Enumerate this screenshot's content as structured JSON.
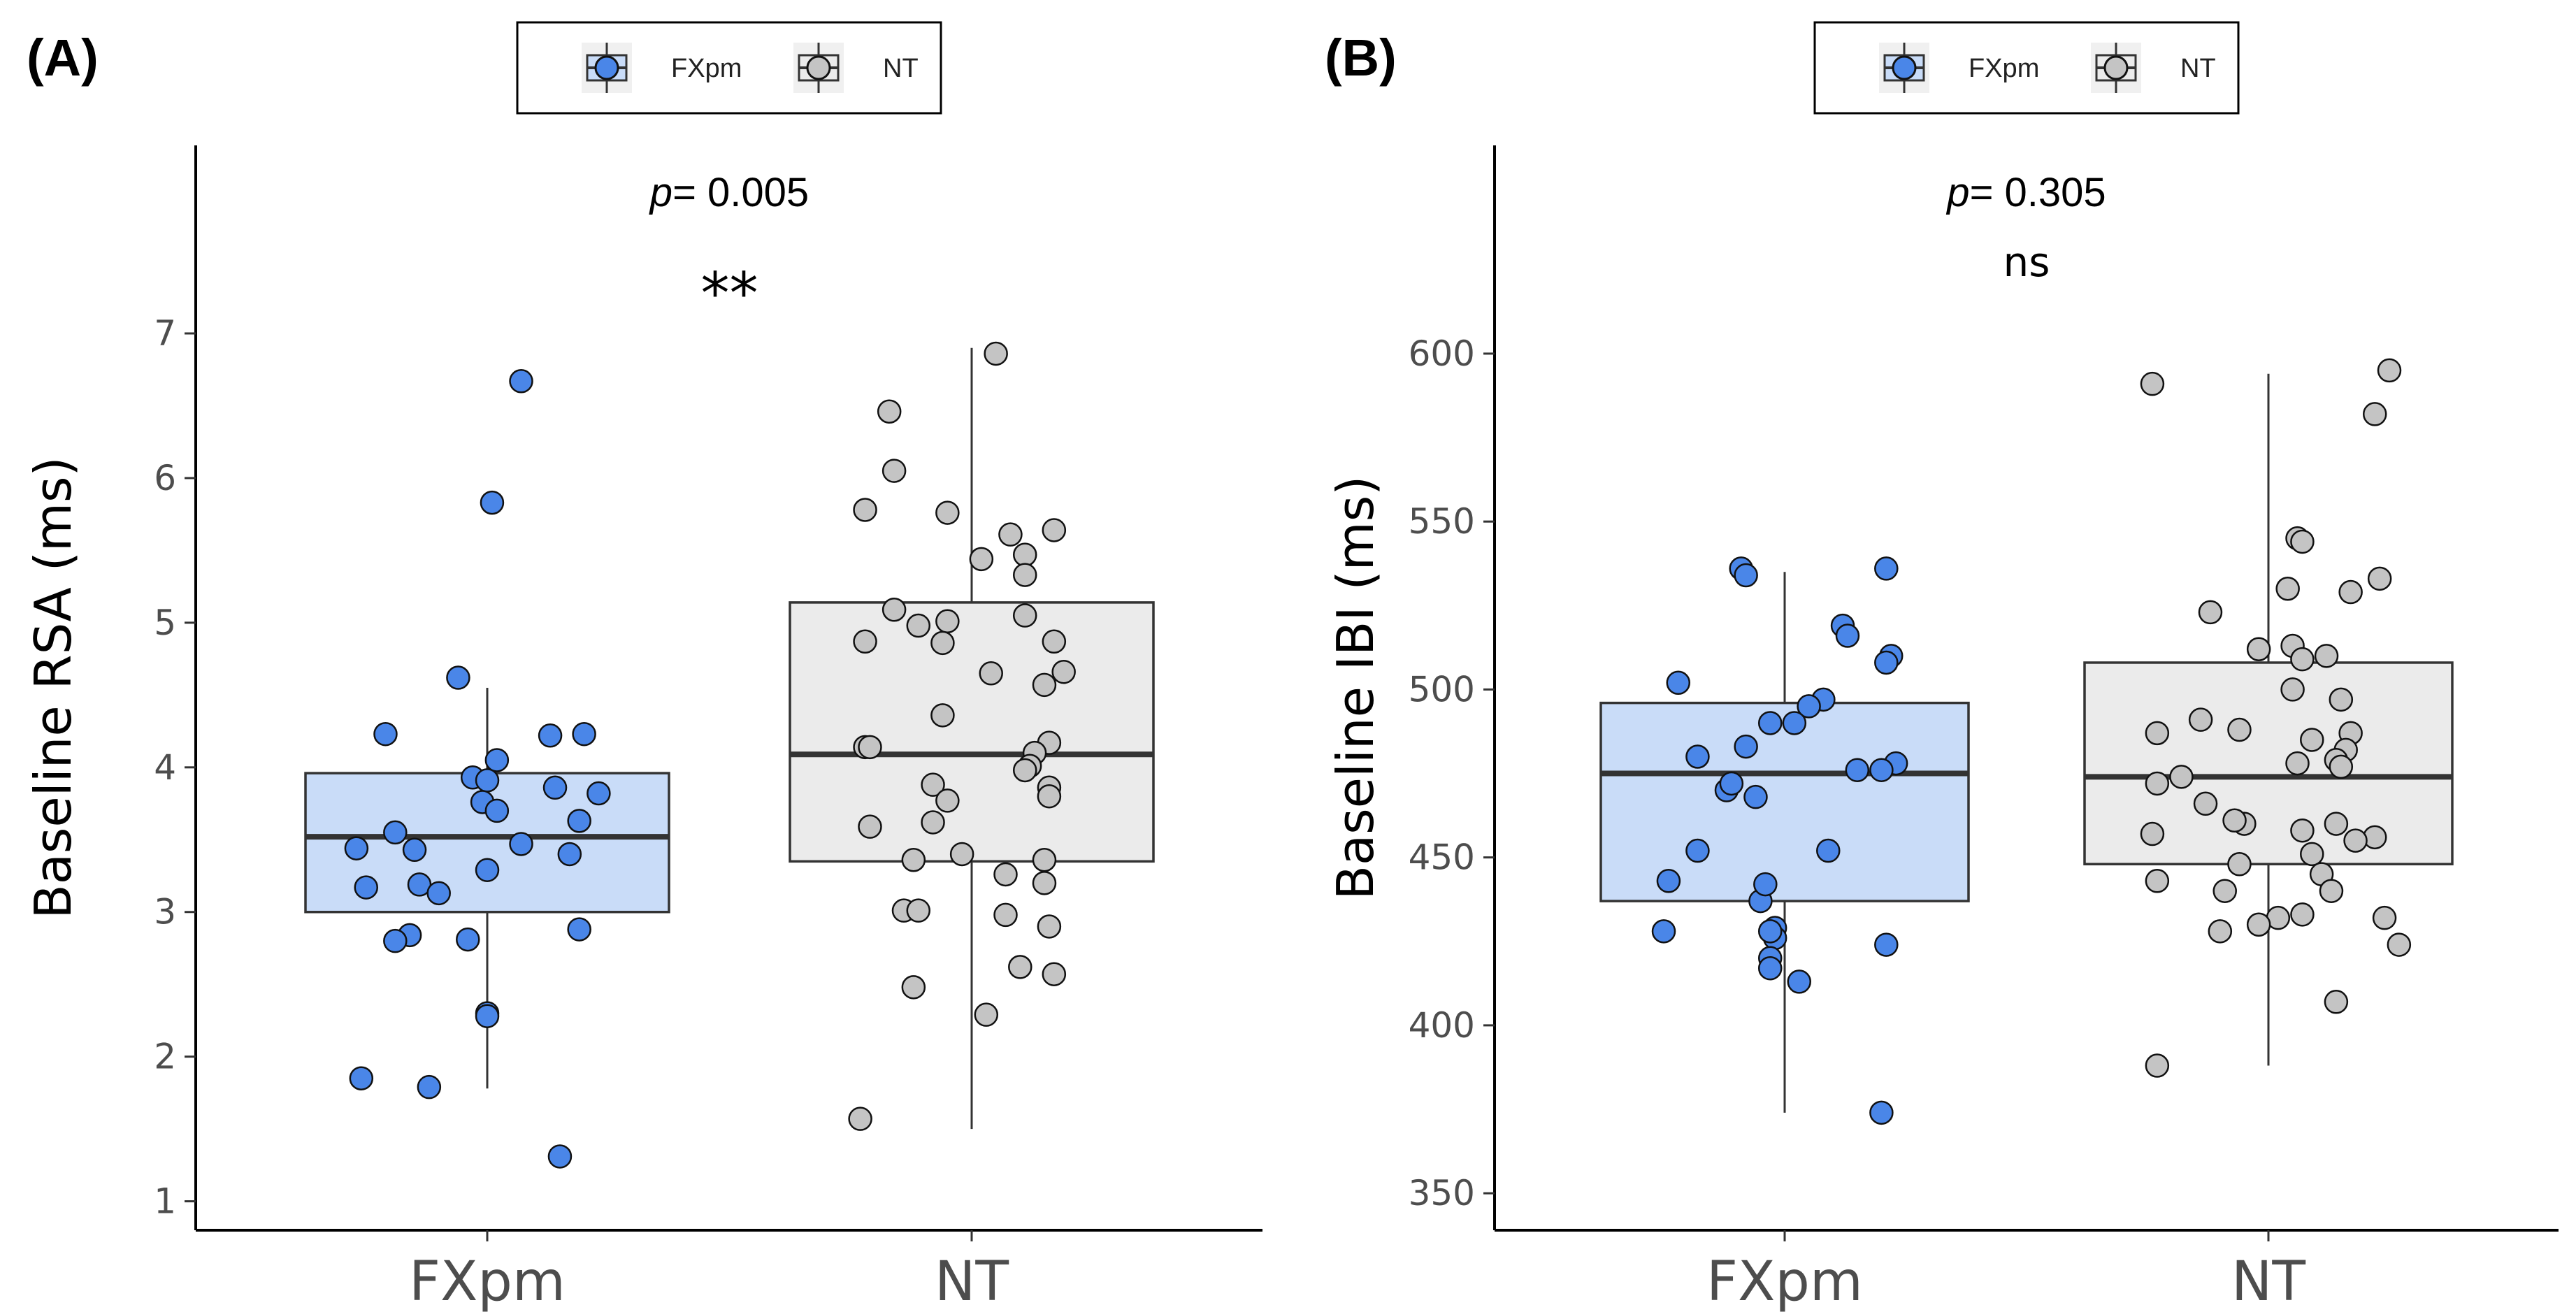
{
  "chart_data": [
    {
      "panel_label": "(A)",
      "type": "box",
      "ylabel": "Baseline RSA (ms)",
      "categories": [
        "FXpm",
        "NT"
      ],
      "ylim": [
        0.8,
        8.3
      ],
      "yticks": [
        "1",
        "2",
        "3",
        "4",
        "5",
        "6",
        "7"
      ],
      "ytick_values": [
        1,
        2,
        3,
        4,
        5,
        6,
        7
      ],
      "legend": [
        {
          "label": "FXpm",
          "color": "#4a86e8"
        },
        {
          "label": "NT",
          "color": "#c4c4c4"
        }
      ],
      "p_prefix": "p",
      "p_value": "= 0.005",
      "significance": "**",
      "boxes": [
        {
          "name": "FXpm",
          "whisker_low": 1.78,
          "q1": 3.0,
          "median": 3.52,
          "q3": 3.96,
          "whisker_high": 4.55,
          "fill": "#c9dcf8",
          "point_color": "#4a86e8"
        },
        {
          "name": "NT",
          "whisker_low": 1.5,
          "q1": 3.35,
          "median": 4.09,
          "q3": 5.14,
          "whisker_high": 6.9,
          "fill": "#ebebeb",
          "point_color": "#c4c4c4"
        }
      ],
      "points": [
        [
          {
            "x": 0.07,
            "y": 6.67
          },
          {
            "x": 0.01,
            "y": 5.83
          },
          {
            "x": -0.06,
            "y": 4.62
          },
          {
            "x": -0.21,
            "y": 4.23
          },
          {
            "x": 0.13,
            "y": 4.22
          },
          {
            "x": 0.2,
            "y": 4.23
          },
          {
            "x": 0.02,
            "y": 4.05
          },
          {
            "x": -0.03,
            "y": 3.93
          },
          {
            "x": 0.0,
            "y": 3.91
          },
          {
            "x": 0.14,
            "y": 3.86
          },
          {
            "x": 0.23,
            "y": 3.82
          },
          {
            "x": -0.01,
            "y": 3.76
          },
          {
            "x": 0.02,
            "y": 3.7
          },
          {
            "x": 0.19,
            "y": 3.63
          },
          {
            "x": -0.19,
            "y": 3.55
          },
          {
            "x": 0.07,
            "y": 3.47
          },
          {
            "x": -0.27,
            "y": 3.44
          },
          {
            "x": -0.15,
            "y": 3.43
          },
          {
            "x": 0.17,
            "y": 3.4
          },
          {
            "x": 0.0,
            "y": 3.29
          },
          {
            "x": -0.14,
            "y": 3.19
          },
          {
            "x": -0.25,
            "y": 3.17
          },
          {
            "x": -0.1,
            "y": 3.13
          },
          {
            "x": 0.19,
            "y": 2.88
          },
          {
            "x": -0.16,
            "y": 2.84
          },
          {
            "x": -0.19,
            "y": 2.8
          },
          {
            "x": -0.04,
            "y": 2.81
          },
          {
            "x": 0.0,
            "y": 2.3
          },
          {
            "x": 0.0,
            "y": 2.28
          },
          {
            "x": -0.26,
            "y": 1.85
          },
          {
            "x": -0.12,
            "y": 1.79
          },
          {
            "x": 0.15,
            "y": 1.31
          }
        ],
        [
          {
            "x": 0.05,
            "y": 6.86
          },
          {
            "x": -0.17,
            "y": 6.46
          },
          {
            "x": -0.16,
            "y": 6.05
          },
          {
            "x": -0.22,
            "y": 5.78
          },
          {
            "x": -0.05,
            "y": 5.76
          },
          {
            "x": 0.08,
            "y": 5.61
          },
          {
            "x": 0.17,
            "y": 5.64
          },
          {
            "x": 0.11,
            "y": 5.47
          },
          {
            "x": 0.02,
            "y": 5.44
          },
          {
            "x": 0.11,
            "y": 5.33
          },
          {
            "x": -0.16,
            "y": 5.09
          },
          {
            "x": 0.11,
            "y": 5.05
          },
          {
            "x": -0.05,
            "y": 5.01
          },
          {
            "x": -0.11,
            "y": 4.98
          },
          {
            "x": -0.22,
            "y": 4.87
          },
          {
            "x": -0.06,
            "y": 4.86
          },
          {
            "x": 0.17,
            "y": 4.87
          },
          {
            "x": 0.19,
            "y": 4.66
          },
          {
            "x": 0.04,
            "y": 4.65
          },
          {
            "x": 0.15,
            "y": 4.57
          },
          {
            "x": -0.06,
            "y": 4.36
          },
          {
            "x": 0.16,
            "y": 4.17
          },
          {
            "x": -0.22,
            "y": 4.14
          },
          {
            "x": -0.21,
            "y": 4.14
          },
          {
            "x": 0.13,
            "y": 4.1
          },
          {
            "x": 0.12,
            "y": 4.01
          },
          {
            "x": 0.11,
            "y": 3.98
          },
          {
            "x": -0.08,
            "y": 3.88
          },
          {
            "x": 0.16,
            "y": 3.86
          },
          {
            "x": 0.16,
            "y": 3.8
          },
          {
            "x": -0.05,
            "y": 3.77
          },
          {
            "x": -0.08,
            "y": 3.62
          },
          {
            "x": -0.21,
            "y": 3.59
          },
          {
            "x": -0.02,
            "y": 3.4
          },
          {
            "x": -0.12,
            "y": 3.36
          },
          {
            "x": 0.15,
            "y": 3.36
          },
          {
            "x": 0.07,
            "y": 3.26
          },
          {
            "x": 0.15,
            "y": 3.2
          },
          {
            "x": -0.14,
            "y": 3.01
          },
          {
            "x": -0.11,
            "y": 3.01
          },
          {
            "x": 0.07,
            "y": 2.98
          },
          {
            "x": 0.16,
            "y": 2.9
          },
          {
            "x": 0.1,
            "y": 2.62
          },
          {
            "x": 0.17,
            "y": 2.57
          },
          {
            "x": -0.12,
            "y": 2.48
          },
          {
            "x": 0.03,
            "y": 2.29
          },
          {
            "x": -0.23,
            "y": 1.57
          }
        ]
      ]
    },
    {
      "panel_label": "(B)",
      "type": "box",
      "ylabel": "Baseline IBI (ms)",
      "categories": [
        "FXpm",
        "NT"
      ],
      "ylim": [
        339,
        662
      ],
      "yticks": [
        "350",
        "400",
        "450",
        "500",
        "550",
        "600"
      ],
      "ytick_values": [
        350,
        400,
        450,
        500,
        550,
        600
      ],
      "legend": [
        {
          "label": "FXpm",
          "color": "#4a86e8"
        },
        {
          "label": "NT",
          "color": "#c4c4c4"
        }
      ],
      "p_prefix": "p",
      "p_value": "= 0.305",
      "significance": "ns",
      "boxes": [
        {
          "name": "FXpm",
          "whisker_low": 374,
          "q1": 437,
          "median": 475,
          "q3": 496,
          "whisker_high": 535,
          "fill": "#c9dcf8",
          "point_color": "#4a86e8"
        },
        {
          "name": "NT",
          "whisker_low": 388,
          "q1": 448,
          "median": 474,
          "q3": 508,
          "whisker_high": 594,
          "fill": "#ebebeb",
          "point_color": "#c4c4c4"
        }
      ],
      "points": [
        [
          {
            "x": -0.09,
            "y": 536
          },
          {
            "x": -0.08,
            "y": 534
          },
          {
            "x": 0.21,
            "y": 536
          },
          {
            "x": 0.12,
            "y": 519
          },
          {
            "x": 0.13,
            "y": 516
          },
          {
            "x": 0.22,
            "y": 510
          },
          {
            "x": 0.21,
            "y": 508
          },
          {
            "x": -0.22,
            "y": 502
          },
          {
            "x": 0.08,
            "y": 497
          },
          {
            "x": 0.05,
            "y": 495
          },
          {
            "x": -0.03,
            "y": 490
          },
          {
            "x": 0.02,
            "y": 490
          },
          {
            "x": -0.08,
            "y": 483
          },
          {
            "x": -0.18,
            "y": 480
          },
          {
            "x": 0.23,
            "y": 478
          },
          {
            "x": 0.15,
            "y": 476
          },
          {
            "x": 0.2,
            "y": 476
          },
          {
            "x": -0.06,
            "y": 468
          },
          {
            "x": -0.12,
            "y": 470
          },
          {
            "x": -0.11,
            "y": 472
          },
          {
            "x": -0.24,
            "y": 443
          },
          {
            "x": -0.18,
            "y": 452
          },
          {
            "x": 0.09,
            "y": 452
          },
          {
            "x": -0.05,
            "y": 437
          },
          {
            "x": -0.04,
            "y": 442
          },
          {
            "x": -0.02,
            "y": 429
          },
          {
            "x": -0.02,
            "y": 426
          },
          {
            "x": -0.03,
            "y": 420
          },
          {
            "x": -0.03,
            "y": 417
          },
          {
            "x": 0.21,
            "y": 424
          },
          {
            "x": -0.03,
            "y": 428
          },
          {
            "x": -0.25,
            "y": 428
          },
          {
            "x": 0.03,
            "y": 413
          },
          {
            "x": 0.2,
            "y": 374
          }
        ],
        [
          {
            "x": -0.24,
            "y": 591
          },
          {
            "x": 0.25,
            "y": 595
          },
          {
            "x": 0.22,
            "y": 582
          },
          {
            "x": 0.06,
            "y": 545
          },
          {
            "x": 0.07,
            "y": 544
          },
          {
            "x": 0.23,
            "y": 533
          },
          {
            "x": -0.12,
            "y": 523
          },
          {
            "x": 0.04,
            "y": 530
          },
          {
            "x": 0.17,
            "y": 529
          },
          {
            "x": -0.02,
            "y": 512
          },
          {
            "x": 0.05,
            "y": 513
          },
          {
            "x": 0.07,
            "y": 509
          },
          {
            "x": 0.12,
            "y": 510
          },
          {
            "x": 0.05,
            "y": 500
          },
          {
            "x": 0.15,
            "y": 497
          },
          {
            "x": -0.14,
            "y": 491
          },
          {
            "x": -0.06,
            "y": 488
          },
          {
            "x": -0.23,
            "y": 487
          },
          {
            "x": 0.09,
            "y": 485
          },
          {
            "x": 0.17,
            "y": 487
          },
          {
            "x": 0.16,
            "y": 482
          },
          {
            "x": 0.14,
            "y": 479
          },
          {
            "x": 0.06,
            "y": 478
          },
          {
            "x": 0.15,
            "y": 477
          },
          {
            "x": -0.18,
            "y": 474
          },
          {
            "x": -0.23,
            "y": 472
          },
          {
            "x": -0.13,
            "y": 466
          },
          {
            "x": -0.05,
            "y": 460
          },
          {
            "x": 0.14,
            "y": 460
          },
          {
            "x": 0.07,
            "y": 458
          },
          {
            "x": -0.24,
            "y": 457
          },
          {
            "x": -0.07,
            "y": 461
          },
          {
            "x": 0.09,
            "y": 451
          },
          {
            "x": 0.22,
            "y": 456
          },
          {
            "x": 0.18,
            "y": 455
          },
          {
            "x": -0.06,
            "y": 448
          },
          {
            "x": 0.11,
            "y": 445
          },
          {
            "x": -0.23,
            "y": 443
          },
          {
            "x": -0.09,
            "y": 440
          },
          {
            "x": 0.13,
            "y": 440
          },
          {
            "x": 0.07,
            "y": 433
          },
          {
            "x": 0.02,
            "y": 432
          },
          {
            "x": -0.02,
            "y": 430
          },
          {
            "x": -0.1,
            "y": 428
          },
          {
            "x": 0.24,
            "y": 432
          },
          {
            "x": 0.27,
            "y": 424
          },
          {
            "x": 0.14,
            "y": 407
          },
          {
            "x": -0.23,
            "y": 388
          }
        ]
      ]
    }
  ]
}
